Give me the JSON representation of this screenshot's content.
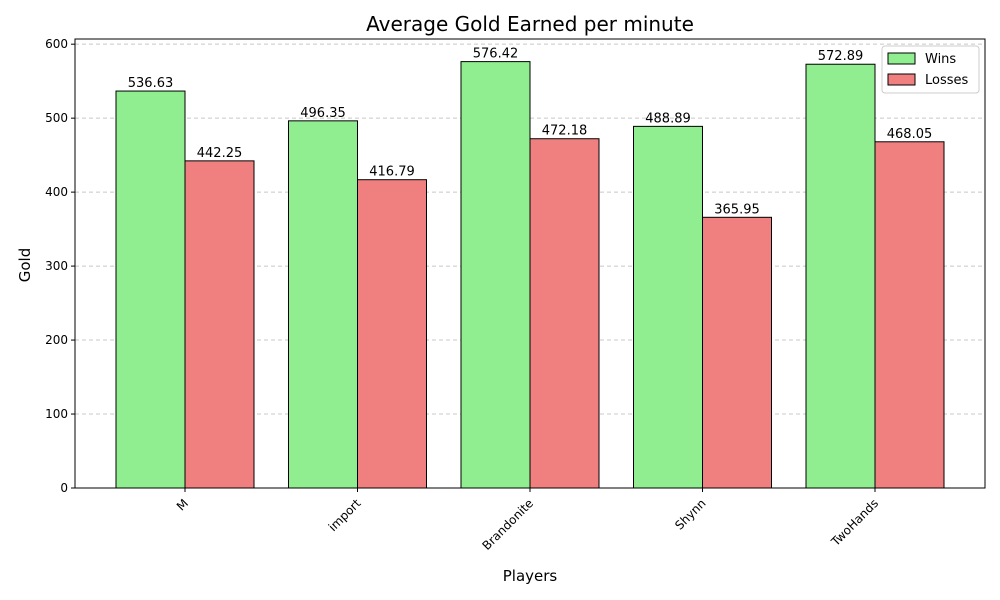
{
  "chart_data": {
    "type": "bar",
    "title": "Average Gold Earned per minute",
    "xlabel": "Players",
    "ylabel": "Gold",
    "categories": [
      "M",
      "import",
      "Brandonite",
      "Shynn",
      "TwoHands"
    ],
    "series": [
      {
        "name": "Wins",
        "values": [
          536.63,
          496.35,
          576.42,
          488.89,
          572.89
        ],
        "color": "#90ee90"
      },
      {
        "name": "Losses",
        "values": [
          442.25,
          416.79,
          472.18,
          365.95,
          468.05
        ],
        "color": "#f08080"
      }
    ],
    "ylim": [
      0,
      607
    ],
    "yticks": [
      0,
      100,
      200,
      300,
      400,
      500,
      600
    ],
    "grid": "y-dashed",
    "legend": "top-right",
    "xtick_rotation": 45
  }
}
